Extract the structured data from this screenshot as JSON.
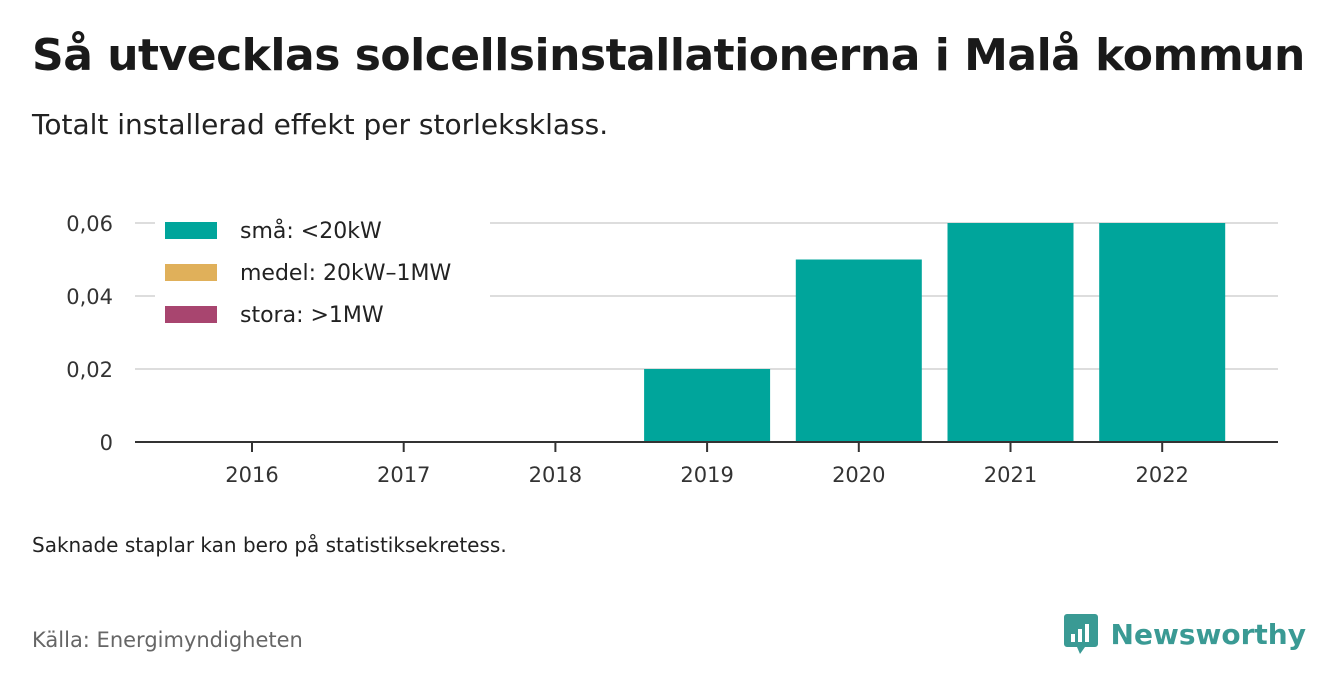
{
  "title": "Så utvecklas solcellsinstallationerna i Malå kommun",
  "subtitle": "Totalt installerad effekt per storleksklass.",
  "note": "Saknade staplar kan bero på statistiksekretess.",
  "source": "Källa: Energimyndigheten",
  "brand": {
    "name": "Newsworthy",
    "color": "#3a9a94",
    "logo_icon": "bar-chart-bubble-icon"
  },
  "chart_data": {
    "type": "bar",
    "stacked": true,
    "categories": [
      "2016",
      "2017",
      "2018",
      "2019",
      "2020",
      "2021",
      "2022"
    ],
    "series": [
      {
        "name": "små: <20kW",
        "color": "#00a59b",
        "values": [
          0,
          0,
          0,
          0.02,
          0.05,
          0.06,
          0.06
        ]
      },
      {
        "name": "medel: 20kW–1MW",
        "color": "#e0b05a",
        "values": [
          0,
          0,
          0,
          0,
          0,
          0,
          0
        ]
      },
      {
        "name": "stora: >1MW",
        "color": "#a8456f",
        "values": [
          0,
          0,
          0,
          0,
          0,
          0,
          0
        ]
      }
    ],
    "y_ticks": [
      {
        "value": 0,
        "label": "0"
      },
      {
        "value": 0.02,
        "label": "0,02"
      },
      {
        "value": 0.04,
        "label": "0,04"
      },
      {
        "value": 0.06,
        "label": "0,06"
      }
    ],
    "ylim": [
      0,
      0.06
    ],
    "grid": true,
    "legend_position": "top-left"
  }
}
